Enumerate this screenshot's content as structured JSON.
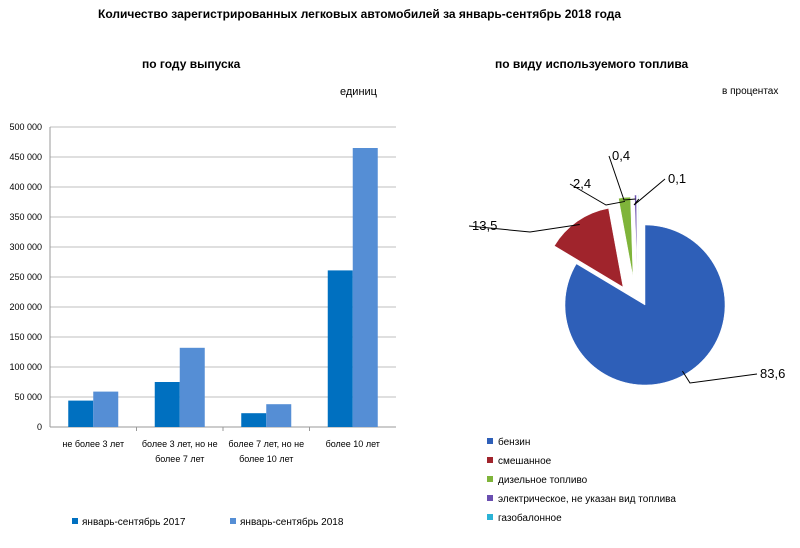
{
  "title": "Количество зарегистрированных  легковых автомобилей  за январь-сентябрь  2018 года",
  "chart_data": [
    {
      "type": "bar",
      "title": "по году выпуска",
      "unit": "единиц",
      "categories": [
        [
          "не более 3 лет"
        ],
        [
          "более 3 лет, но не",
          "более 7 лет"
        ],
        [
          "более 7 лет, но не",
          "более 10 лет"
        ],
        [
          "более 10 лет"
        ]
      ],
      "series": [
        {
          "name": "январь-сентябрь 2017",
          "color": "#0070c0",
          "values": [
            44000,
            75000,
            23000,
            261000
          ]
        },
        {
          "name": "январь-сентябрь 2018",
          "color": "#558ed5",
          "values": [
            59000,
            132000,
            38000,
            465000
          ]
        }
      ],
      "ylim": [
        0,
        500000
      ],
      "yticks": [
        "0",
        "50 000",
        "100 000",
        "150 000",
        "200 000",
        "250 000",
        "300 000",
        "350 000",
        "400 000",
        "450 000",
        "500 000"
      ],
      "grid": true,
      "legend": "bottom"
    },
    {
      "type": "pie",
      "title": "по виду используемого  топлива",
      "unit": "в процентах",
      "slices": [
        {
          "label": "бензин",
          "value": 83.6,
          "value_label": "83,6",
          "color": "#2e5fb8"
        },
        {
          "label": "смешанное",
          "value": 13.5,
          "value_label": "13,5",
          "color": "#a0242c"
        },
        {
          "label": "дизельное топливо",
          "value": 2.4,
          "value_label": "2,4",
          "color": "#7fb43a"
        },
        {
          "label": "электрическое, не указан вид топлива",
          "value": 0.4,
          "value_label": "0,4",
          "color": "#6a4fb0"
        },
        {
          "label": "газобалонное",
          "value": 0.1,
          "value_label": "0,1",
          "color": "#2bb3d6"
        }
      ],
      "legend": "bottom"
    }
  ]
}
